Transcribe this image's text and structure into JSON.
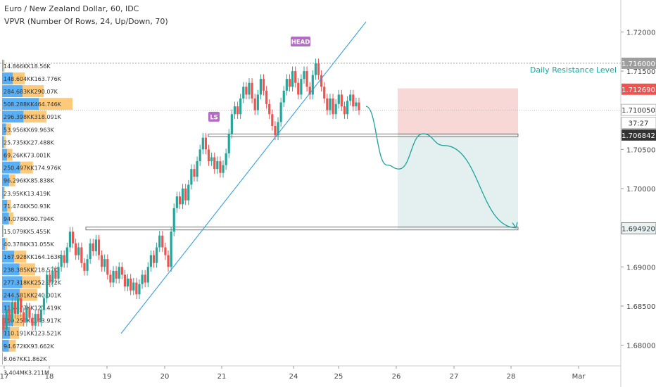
{
  "header": {
    "title": "Euro / New Zealand Dollar, 60, IDC",
    "indicator": "VPVR (Number Of Rows, 24, Up/Down, 70)"
  },
  "colors": {
    "candle_up": "#26a69a",
    "candle_down": "#ef5350",
    "vol_up": "#2196f3",
    "vol_down": "#ffb74d",
    "trendline": "#2196f3",
    "projection": "#1ba39c",
    "stop_zone": "#f8d7d7",
    "target_zone": "#e4efef",
    "annotation_label": "#b36bc4",
    "resistance_text": "#1ba39c"
  },
  "annotations": {
    "head": "HEAD",
    "left_shoulder": "LS",
    "resistance": "Daily Resistance Level"
  },
  "price_badges": [
    {
      "value": 1.716,
      "label": "1.716000",
      "bg": "#9e9e9e",
      "color": "#ffffff"
    },
    {
      "value": 1.71269,
      "label": "1.712690",
      "bg": "#ef5350",
      "color": "#ffffff"
    },
    {
      "value": 1.71005,
      "label": "1.710050",
      "bg": "#ffffff",
      "color": "#333333",
      "border": "#aaaaaa"
    },
    {
      "value": 1.7084,
      "label": "37:27",
      "bg": "#ffffff",
      "color": "#333333",
      "border": "#aaaaaa"
    },
    {
      "value": 1.706842,
      "label": "1.706842",
      "bg": "#333333",
      "color": "#ffffff"
    },
    {
      "value": 1.69492,
      "label": "1.694920",
      "bg": "#e9f3f3",
      "color": "#333333",
      "border": "#666666"
    }
  ],
  "chart_data": {
    "type": "candlestick",
    "x_ticks": [
      "17",
      "18",
      "19",
      "20",
      "21",
      "24",
      "25",
      "26",
      "27",
      "28",
      "Mar"
    ],
    "y_ticks": [
      "1.680000",
      "1.685000",
      "1.690000",
      "1.695000",
      "1.700000",
      "1.705000",
      "1.710000",
      "1.715000",
      "1.720000"
    ],
    "ylim": [
      1.678,
      1.723
    ],
    "levels": [
      1.716,
      1.71,
      1.7068,
      1.6949
    ],
    "candles": [
      [
        1.6835,
        1.682
      ],
      [
        1.682,
        1.6845
      ],
      [
        1.6845,
        1.683
      ],
      [
        1.683,
        1.6855
      ],
      [
        1.6855,
        1.684
      ],
      [
        1.684,
        1.686
      ],
      [
        1.686,
        1.6842
      ],
      [
        1.6842,
        1.683
      ],
      [
        1.683,
        1.6848
      ],
      [
        1.6848,
        1.6835
      ],
      [
        1.6835,
        1.6825
      ],
      [
        1.6825,
        1.684
      ],
      [
        1.684,
        1.683
      ],
      [
        1.683,
        1.6845
      ],
      [
        1.6845,
        1.686
      ],
      [
        1.686,
        1.689
      ],
      [
        1.689,
        1.688
      ],
      [
        1.688,
        1.6895
      ],
      [
        1.6895,
        1.6885
      ],
      [
        1.6885,
        1.69
      ],
      [
        1.69,
        1.6915
      ],
      [
        1.6915,
        1.6905
      ],
      [
        1.6905,
        1.6925
      ],
      [
        1.6925,
        1.6945
      ],
      [
        1.6945,
        1.693
      ],
      [
        1.693,
        1.6915
      ],
      [
        1.6915,
        1.6925
      ],
      [
        1.6925,
        1.6905
      ],
      [
        1.6905,
        1.6895
      ],
      [
        1.6895,
        1.691
      ],
      [
        1.691,
        1.693
      ],
      [
        1.693,
        1.692
      ],
      [
        1.692,
        1.6935
      ],
      [
        1.6935,
        1.6915
      ],
      [
        1.6915,
        1.69
      ],
      [
        1.69,
        1.691
      ],
      [
        1.691,
        1.689
      ],
      [
        1.689,
        1.688
      ],
      [
        1.688,
        1.6895
      ],
      [
        1.6895,
        1.6885
      ],
      [
        1.6885,
        1.69
      ],
      [
        1.69,
        1.689
      ],
      [
        1.689,
        1.6875
      ],
      [
        1.6875,
        1.6885
      ],
      [
        1.6885,
        1.687
      ],
      [
        1.687,
        1.688
      ],
      [
        1.688,
        1.6865
      ],
      [
        1.6865,
        1.6878
      ],
      [
        1.6878,
        1.689
      ],
      [
        1.689,
        1.688
      ],
      [
        1.688,
        1.69
      ],
      [
        1.69,
        1.6915
      ],
      [
        1.6915,
        1.6905
      ],
      [
        1.6905,
        1.6925
      ],
      [
        1.6925,
        1.694
      ],
      [
        1.694,
        1.6925
      ],
      [
        1.6925,
        1.6915
      ],
      [
        1.6915,
        1.69
      ],
      [
        1.69,
        1.6945
      ],
      [
        1.6945,
        1.6975
      ],
      [
        1.6975,
        1.699
      ],
      [
        1.699,
        1.698
      ],
      [
        1.698,
        1.7
      ],
      [
        1.7,
        1.6985
      ],
      [
        1.6985,
        1.7005
      ],
      [
        1.7005,
        1.7025
      ],
      [
        1.7025,
        1.7015
      ],
      [
        1.7015,
        1.7035
      ],
      [
        1.7035,
        1.705
      ],
      [
        1.705,
        1.7065
      ],
      [
        1.7065,
        1.705
      ],
      [
        1.705,
        1.7035
      ],
      [
        1.7035,
        1.704
      ],
      [
        1.704,
        1.7025
      ],
      [
        1.7025,
        1.7035
      ],
      [
        1.7035,
        1.702
      ],
      [
        1.702,
        1.703
      ],
      [
        1.703,
        1.7045
      ],
      [
        1.7045,
        1.707
      ],
      [
        1.707,
        1.7095
      ],
      [
        1.7095,
        1.7105
      ],
      [
        1.7105,
        1.7095
      ],
      [
        1.7095,
        1.7115
      ],
      [
        1.7115,
        1.713
      ],
      [
        1.713,
        1.712
      ],
      [
        1.712,
        1.7135
      ],
      [
        1.7135,
        1.7115
      ],
      [
        1.7115,
        1.71
      ],
      [
        1.71,
        1.712
      ],
      [
        1.712,
        1.714
      ],
      [
        1.714,
        1.7125
      ],
      [
        1.7125,
        1.7108
      ],
      [
        1.7108,
        1.7095
      ],
      [
        1.7095,
        1.708
      ],
      [
        1.708,
        1.7068
      ],
      [
        1.7068,
        1.7085
      ],
      [
        1.7085,
        1.711
      ],
      [
        1.711,
        1.7125
      ],
      [
        1.7125,
        1.714
      ],
      [
        1.714,
        1.713
      ],
      [
        1.713,
        1.715
      ],
      [
        1.715,
        1.7135
      ],
      [
        1.7135,
        1.712
      ],
      [
        1.712,
        1.714
      ],
      [
        1.714,
        1.715
      ],
      [
        1.715,
        1.713
      ],
      [
        1.713,
        1.712
      ],
      [
        1.712,
        1.7145
      ],
      [
        1.7145,
        1.716
      ],
      [
        1.716,
        1.7145
      ],
      [
        1.7145,
        1.713
      ],
      [
        1.713,
        1.7115
      ],
      [
        1.7115,
        1.71
      ],
      [
        1.71,
        1.7115
      ],
      [
        1.7115,
        1.7095
      ],
      [
        1.7095,
        1.7108
      ],
      [
        1.7108,
        1.712
      ],
      [
        1.712,
        1.7105
      ],
      [
        1.7105,
        1.7095
      ],
      [
        1.7095,
        1.7112
      ],
      [
        1.7112,
        1.712
      ],
      [
        1.712,
        1.7105
      ],
      [
        1.7105,
        1.711
      ],
      [
        1.711,
        1.71
      ]
    ],
    "projection": [
      [
        1.7105,
        0
      ],
      [
        1.703,
        0.14
      ],
      [
        1.7025,
        0.22
      ],
      [
        1.707,
        0.38
      ],
      [
        1.7055,
        0.52
      ],
      [
        1.695,
        1.0
      ]
    ],
    "volume_profile": [
      {
        "label": "14.866KK18.56K",
        "up": 14.866,
        "down": 18.56
      },
      {
        "label": "148.604KK163.776K",
        "up": 148.604,
        "down": 163.776
      },
      {
        "label": "284.683KK290.07K",
        "up": 284.683,
        "down": 290.07
      },
      {
        "label": "508.288KK464.746K",
        "up": 508.288,
        "down": 464.746
      },
      {
        "label": "296.398KK318.091K",
        "up": 296.398,
        "down": 318.091
      },
      {
        "label": "53.956KK69.963K",
        "up": 53.956,
        "down": 69.963
      },
      {
        "label": "25.735KK27.488K",
        "up": 25.735,
        "down": 27.488
      },
      {
        "label": "69.26KK73.001K",
        "up": 69.26,
        "down": 73.001
      },
      {
        "label": "250.497KK174.976K",
        "up": 250.497,
        "down": 174.976
      },
      {
        "label": "96.296KK85.838K",
        "up": 96.296,
        "down": 85.838
      },
      {
        "label": "23.95KK13.419K",
        "up": 23.95,
        "down": 13.419
      },
      {
        "label": "71.474KK50.93K",
        "up": 71.474,
        "down": 50.93
      },
      {
        "label": "94.078KK60.794K",
        "up": 94.078,
        "down": 60.794
      },
      {
        "label": "15.079KK5.455K",
        "up": 15.079,
        "down": 5.455
      },
      {
        "label": "40.378KK31.055K",
        "up": 40.378,
        "down": 31.055
      },
      {
        "label": "167.928KK164.163K",
        "up": 167.928,
        "down": 164.163
      },
      {
        "label": "238.385KK218.57K",
        "up": 238.385,
        "down": 218.57
      },
      {
        "label": "277.318KK252.272K",
        "up": 277.318,
        "down": 252.272
      },
      {
        "label": "244.581KK240.001K",
        "up": 244.581,
        "down": 240.001
      },
      {
        "label": "115.477KK121.419K",
        "up": 115.477,
        "down": 121.419
      },
      {
        "label": "150.256KK143.917K",
        "up": 150.256,
        "down": 143.917
      },
      {
        "label": "110.191KK123.521K",
        "up": 110.191,
        "down": 123.521
      },
      {
        "label": "94.672KK93.662K",
        "up": 94.672,
        "down": 93.662
      },
      {
        "label": "8.067KK1.862K",
        "up": 8.067,
        "down": 1.862
      },
      {
        "label": "3.404MK3.211M",
        "up": 3404,
        "down": 3211
      }
    ]
  }
}
